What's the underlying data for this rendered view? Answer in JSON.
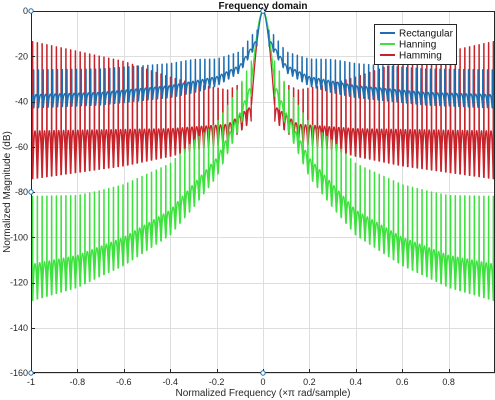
{
  "chart_data": {
    "type": "line",
    "title": "Frequency domain",
    "xlabel": "Normalized Frequency  (×π rad/sample)",
    "ylabel": "Normalized Magnitude (dB)",
    "xlim": [
      -1,
      1
    ],
    "ylim": [
      -160,
      0
    ],
    "x_ticks": [
      -1,
      -0.8,
      -0.6,
      -0.4,
      -0.2,
      0,
      0.2,
      0.4,
      0.6,
      0.8
    ],
    "x_tick_labels": [
      "-1",
      "-0.8",
      "-0.6",
      "-0.4",
      "-0.2",
      "0",
      "0.2",
      "0.4",
      "0.6",
      "0.8"
    ],
    "y_ticks": [
      -160,
      -140,
      -120,
      -100,
      -80,
      -60,
      -40,
      -20,
      0
    ],
    "y_tick_labels": [
      "-160",
      "-140",
      "-120",
      "-100",
      "-80",
      "-60",
      "-40",
      "-20",
      "0"
    ],
    "grid": true,
    "legend_position": "top-right",
    "series": [
      {
        "name": "Rectangular",
        "color": "#1f6fb0",
        "main_lobe_halfwidth": 0.025,
        "ripple_period": 0.0205,
        "sidelobe_peaks": [
          [
            0.03,
            -13
          ],
          [
            0.1,
            -24
          ],
          [
            0.2,
            -29
          ],
          [
            0.4,
            -33
          ],
          [
            0.7,
            -36
          ],
          [
            1.0,
            -37
          ]
        ],
        "null_depth": [
          [
            0,
            -3
          ],
          [
            0.3,
            -7
          ],
          [
            1.0,
            -8
          ]
        ]
      },
      {
        "name": "Hanning",
        "color": "#3ee23e",
        "main_lobe_halfwidth": 0.05,
        "ripple_period": 0.0205,
        "sidelobe_peaks": [
          [
            0.05,
            -32
          ],
          [
            0.1,
            -45
          ],
          [
            0.2,
            -65
          ],
          [
            0.4,
            -88
          ],
          [
            0.6,
            -100
          ],
          [
            0.8,
            -108
          ],
          [
            1.0,
            -112
          ]
        ],
        "null_depth": [
          [
            0,
            -6
          ],
          [
            0.3,
            -14
          ],
          [
            0.7,
            -18
          ],
          [
            1.0,
            -22
          ]
        ]
      },
      {
        "name": "Hamming",
        "color": "#c8232b",
        "main_lobe_halfwidth": 0.05,
        "ripple_period": 0.0205,
        "sidelobe_peaks": [
          [
            0.05,
            -42
          ],
          [
            0.15,
            -50
          ],
          [
            0.4,
            -52
          ],
          [
            1.0,
            -53
          ]
        ],
        "null_depth": [
          [
            0,
            -8
          ],
          [
            0.3,
            -14
          ],
          [
            0.6,
            -22
          ],
          [
            1.0,
            -29
          ]
        ]
      }
    ],
    "axis_markers": [
      {
        "x": -1,
        "y": 0
      },
      {
        "x": -1,
        "y": -80
      },
      {
        "x": -1,
        "y": -160
      },
      {
        "x": 0,
        "y": 0
      },
      {
        "x": 0,
        "y": -160
      }
    ]
  }
}
